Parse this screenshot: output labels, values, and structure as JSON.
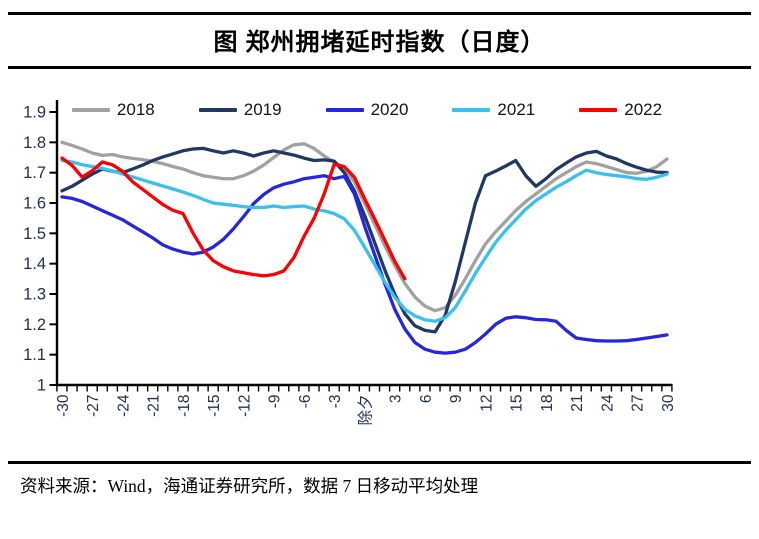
{
  "header": {
    "title": "图 郑州拥堵延时指数（日度）"
  },
  "footer": {
    "source_text": "资料来源：Wind，海通证券研究所，数据 7 日移动平均处理"
  },
  "chart_data": {
    "type": "line",
    "title": "郑州拥堵延时指数（日度）",
    "x_axis_note": "days relative to Chinese New Year's Eve (除夕 = 0), daily data",
    "x_range": [
      -30,
      30
    ],
    "x_tick_step_labeled": 3,
    "x_tick_labels": [
      "-30",
      "-27",
      "-24",
      "-21",
      "-18",
      "-15",
      "-12",
      "-9",
      "-6",
      "-3",
      "除夕",
      "3",
      "6",
      "9",
      "12",
      "15",
      "18",
      "21",
      "24",
      "27",
      "30"
    ],
    "y_tick_labels": [
      "1.9",
      "1.8",
      "1.7",
      "1.6",
      "1.5",
      "1.4",
      "1.3",
      "1.2",
      "1.1",
      "1"
    ],
    "ylim": [
      1.0,
      1.9
    ],
    "grid": false,
    "legend_position": "top",
    "axis_color": "#000000",
    "axis_label_color": "#22304F",
    "series": [
      {
        "name": "2018",
        "color": "#A1A1A1",
        "values": [
          1.8,
          1.79,
          1.778,
          1.765,
          1.757,
          1.76,
          1.752,
          1.747,
          1.743,
          1.737,
          1.73,
          1.72,
          1.712,
          1.7,
          1.69,
          1.685,
          1.68,
          1.68,
          1.69,
          1.705,
          1.725,
          1.75,
          1.775,
          1.792,
          1.795,
          1.78,
          1.755,
          1.735,
          1.715,
          1.67,
          1.6,
          1.53,
          1.46,
          1.395,
          1.335,
          1.29,
          1.26,
          1.245,
          1.255,
          1.295,
          1.35,
          1.41,
          1.465,
          1.505,
          1.54,
          1.575,
          1.605,
          1.63,
          1.655,
          1.68,
          1.7,
          1.72,
          1.735,
          1.73,
          1.72,
          1.71,
          1.7,
          1.698,
          1.705,
          1.72,
          1.745
        ]
      },
      {
        "name": "2019",
        "color": "#1F3864",
        "values": [
          1.64,
          1.655,
          1.675,
          1.695,
          1.712,
          1.705,
          1.7,
          1.712,
          1.725,
          1.74,
          1.752,
          1.762,
          1.772,
          1.778,
          1.78,
          1.772,
          1.765,
          1.772,
          1.765,
          1.755,
          1.765,
          1.772,
          1.765,
          1.758,
          1.748,
          1.74,
          1.742,
          1.738,
          1.7,
          1.64,
          1.56,
          1.47,
          1.38,
          1.3,
          1.235,
          1.195,
          1.18,
          1.175,
          1.23,
          1.34,
          1.47,
          1.6,
          1.69,
          1.705,
          1.722,
          1.74,
          1.69,
          1.655,
          1.68,
          1.71,
          1.732,
          1.752,
          1.765,
          1.77,
          1.755,
          1.745,
          1.73,
          1.718,
          1.708,
          1.702,
          1.7
        ]
      },
      {
        "name": "2020",
        "color": "#2626E0",
        "values": [
          1.62,
          1.615,
          1.605,
          1.59,
          1.575,
          1.56,
          1.545,
          1.525,
          1.505,
          1.485,
          1.462,
          1.448,
          1.438,
          1.432,
          1.438,
          1.455,
          1.48,
          1.515,
          1.555,
          1.598,
          1.628,
          1.65,
          1.662,
          1.67,
          1.68,
          1.685,
          1.69,
          1.68,
          1.688,
          1.63,
          1.525,
          1.43,
          1.335,
          1.25,
          1.185,
          1.14,
          1.118,
          1.108,
          1.105,
          1.108,
          1.118,
          1.14,
          1.168,
          1.2,
          1.22,
          1.225,
          1.222,
          1.216,
          1.215,
          1.21,
          1.18,
          1.155,
          1.15,
          1.146,
          1.145,
          1.145,
          1.146,
          1.15,
          1.155,
          1.16,
          1.165
        ]
      },
      {
        "name": "2021",
        "color": "#38C0EE",
        "values": [
          1.74,
          1.735,
          1.726,
          1.72,
          1.714,
          1.706,
          1.696,
          1.686,
          1.676,
          1.666,
          1.656,
          1.646,
          1.636,
          1.625,
          1.612,
          1.6,
          1.596,
          1.592,
          1.588,
          1.585,
          1.585,
          1.59,
          1.585,
          1.588,
          1.59,
          1.58,
          1.574,
          1.565,
          1.548,
          1.51,
          1.455,
          1.398,
          1.34,
          1.29,
          1.25,
          1.228,
          1.215,
          1.21,
          1.222,
          1.255,
          1.31,
          1.368,
          1.42,
          1.47,
          1.51,
          1.545,
          1.58,
          1.608,
          1.63,
          1.652,
          1.67,
          1.69,
          1.708,
          1.7,
          1.694,
          1.69,
          1.686,
          1.68,
          1.678,
          1.685,
          1.695
        ]
      },
      {
        "name": "2022",
        "color": "#FE0000",
        "values": [
          1.748,
          1.724,
          1.685,
          1.706,
          1.735,
          1.726,
          1.705,
          1.67,
          1.645,
          1.62,
          1.595,
          1.576,
          1.565,
          1.5,
          1.445,
          1.41,
          1.39,
          1.376,
          1.37,
          1.364,
          1.36,
          1.364,
          1.376,
          1.42,
          1.49,
          1.55,
          1.63,
          1.728,
          1.72,
          1.685,
          1.615,
          1.548,
          1.478,
          1.408,
          1.35,
          null,
          null,
          null,
          null,
          null,
          null,
          null,
          null,
          null,
          null,
          null,
          null,
          null,
          null,
          null,
          null,
          null,
          null,
          null,
          null,
          null,
          null,
          null,
          null,
          null,
          null
        ]
      }
    ]
  }
}
